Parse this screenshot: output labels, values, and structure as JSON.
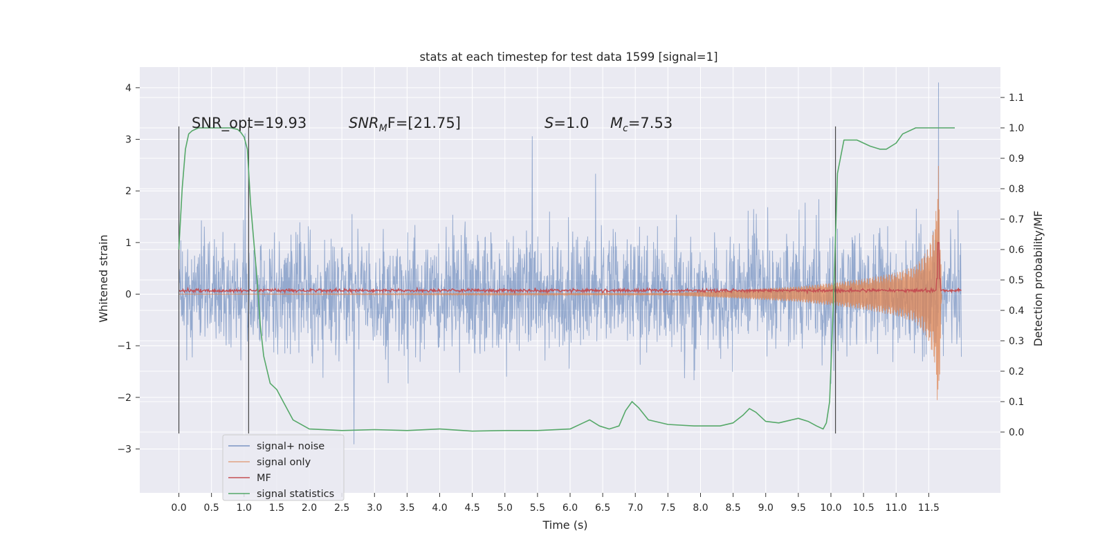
{
  "chart_data": {
    "type": "line",
    "title": "stats at each timestep for test data 1599 [signal=1]",
    "xlabel": "Time (s)",
    "ylabel": "Whitened strain",
    "y2label": "Detection probability/MF",
    "xlim": [
      -0.6,
      12.6
    ],
    "ylim": [
      -3.85,
      4.4
    ],
    "y2lim": [
      -0.2,
      1.2
    ],
    "grid": true,
    "legend_position": "lower-left",
    "xticks": [
      "0.0",
      "0.5",
      "1.0",
      "1.5",
      "2.0",
      "2.5",
      "3.0",
      "3.5",
      "4.0",
      "4.5",
      "5.0",
      "5.5",
      "6.0",
      "6.5",
      "7.0",
      "7.5",
      "8.0",
      "8.5",
      "9.0",
      "9.5",
      "10.0",
      "10.5",
      "11.0",
      "11.5"
    ],
    "yticks": [
      "4",
      "3",
      "2",
      "1",
      "0",
      "−1",
      "−2",
      "−3"
    ],
    "y2ticks": [
      "1.1",
      "1.0",
      "0.9",
      "0.8",
      "0.7",
      "0.6",
      "0.5",
      "0.4",
      "0.3",
      "0.2",
      "0.1",
      "0.0"
    ],
    "annotations": {
      "snr_opt": "SNR_opt=19.93",
      "snr_mf_main": "SNR",
      "snr_mf_sub": "M",
      "snr_mf_rest": "F=[21.75]",
      "s_main": "S",
      "s_rest": "=1.0",
      "mc_main": "M",
      "mc_sub": "c",
      "mc_rest": "=7.53"
    },
    "vertical_markers_x": [
      0.0,
      1.07,
      10.07
    ],
    "vertical_markers_y": [
      -2.7,
      3.25
    ],
    "series": [
      {
        "name": "signal+ noise",
        "color": "#4c72b0",
        "description_values": "white noise, std ~0.75, range approx -3.5 to 4.1, spanning x 0.0 to 12.0"
      },
      {
        "name": "signal only",
        "color": "#dd8452",
        "envelope": {
          "x": [
            0.0,
            7.5,
            8.5,
            9.5,
            10.0,
            10.5,
            11.0,
            11.3,
            11.5,
            11.6,
            11.65,
            11.7
          ],
          "amp": [
            0.0,
            0.02,
            0.08,
            0.15,
            0.22,
            0.3,
            0.42,
            0.55,
            0.9,
            1.4,
            2.5,
            0.0
          ]
        }
      },
      {
        "name": "MF",
        "color": "#c44e52",
        "description_values": "approx 0.07 ± 0.05, spike to 1.0 at x=11.65"
      },
      {
        "name": "signal statistics",
        "color": "#55a868",
        "axis": "right",
        "x": [
          0.0,
          0.05,
          0.1,
          0.15,
          0.2,
          0.3,
          0.5,
          0.8,
          0.9,
          0.95,
          1.0,
          1.05,
          1.1,
          1.2,
          1.25,
          1.3,
          1.4,
          1.5,
          1.6,
          1.75,
          2.0,
          2.5,
          3.0,
          3.5,
          4.0,
          4.5,
          5.0,
          5.5,
          6.0,
          6.2,
          6.3,
          6.45,
          6.6,
          6.75,
          6.85,
          6.95,
          7.05,
          7.2,
          7.5,
          7.9,
          8.3,
          8.5,
          8.65,
          8.75,
          8.85,
          9.0,
          9.2,
          9.5,
          9.65,
          9.78,
          9.88,
          9.93,
          9.98,
          10.05,
          10.1,
          10.2,
          10.4,
          10.6,
          10.75,
          10.85,
          11.0,
          11.1,
          11.3,
          11.5,
          11.7,
          11.9
        ],
        "y": [
          0.6,
          0.8,
          0.93,
          0.98,
          0.99,
          1.0,
          1.0,
          1.0,
          0.995,
          0.985,
          0.97,
          0.93,
          0.75,
          0.5,
          0.35,
          0.25,
          0.16,
          0.14,
          0.1,
          0.04,
          0.01,
          0.005,
          0.008,
          0.005,
          0.01,
          0.003,
          0.005,
          0.005,
          0.01,
          0.03,
          0.04,
          0.02,
          0.01,
          0.02,
          0.07,
          0.1,
          0.08,
          0.04,
          0.025,
          0.02,
          0.02,
          0.03,
          0.055,
          0.077,
          0.065,
          0.035,
          0.03,
          0.045,
          0.035,
          0.02,
          0.01,
          0.03,
          0.1,
          0.5,
          0.85,
          0.96,
          0.96,
          0.94,
          0.93,
          0.93,
          0.95,
          0.98,
          1.0,
          1.0,
          1.0,
          1.0
        ]
      }
    ]
  }
}
